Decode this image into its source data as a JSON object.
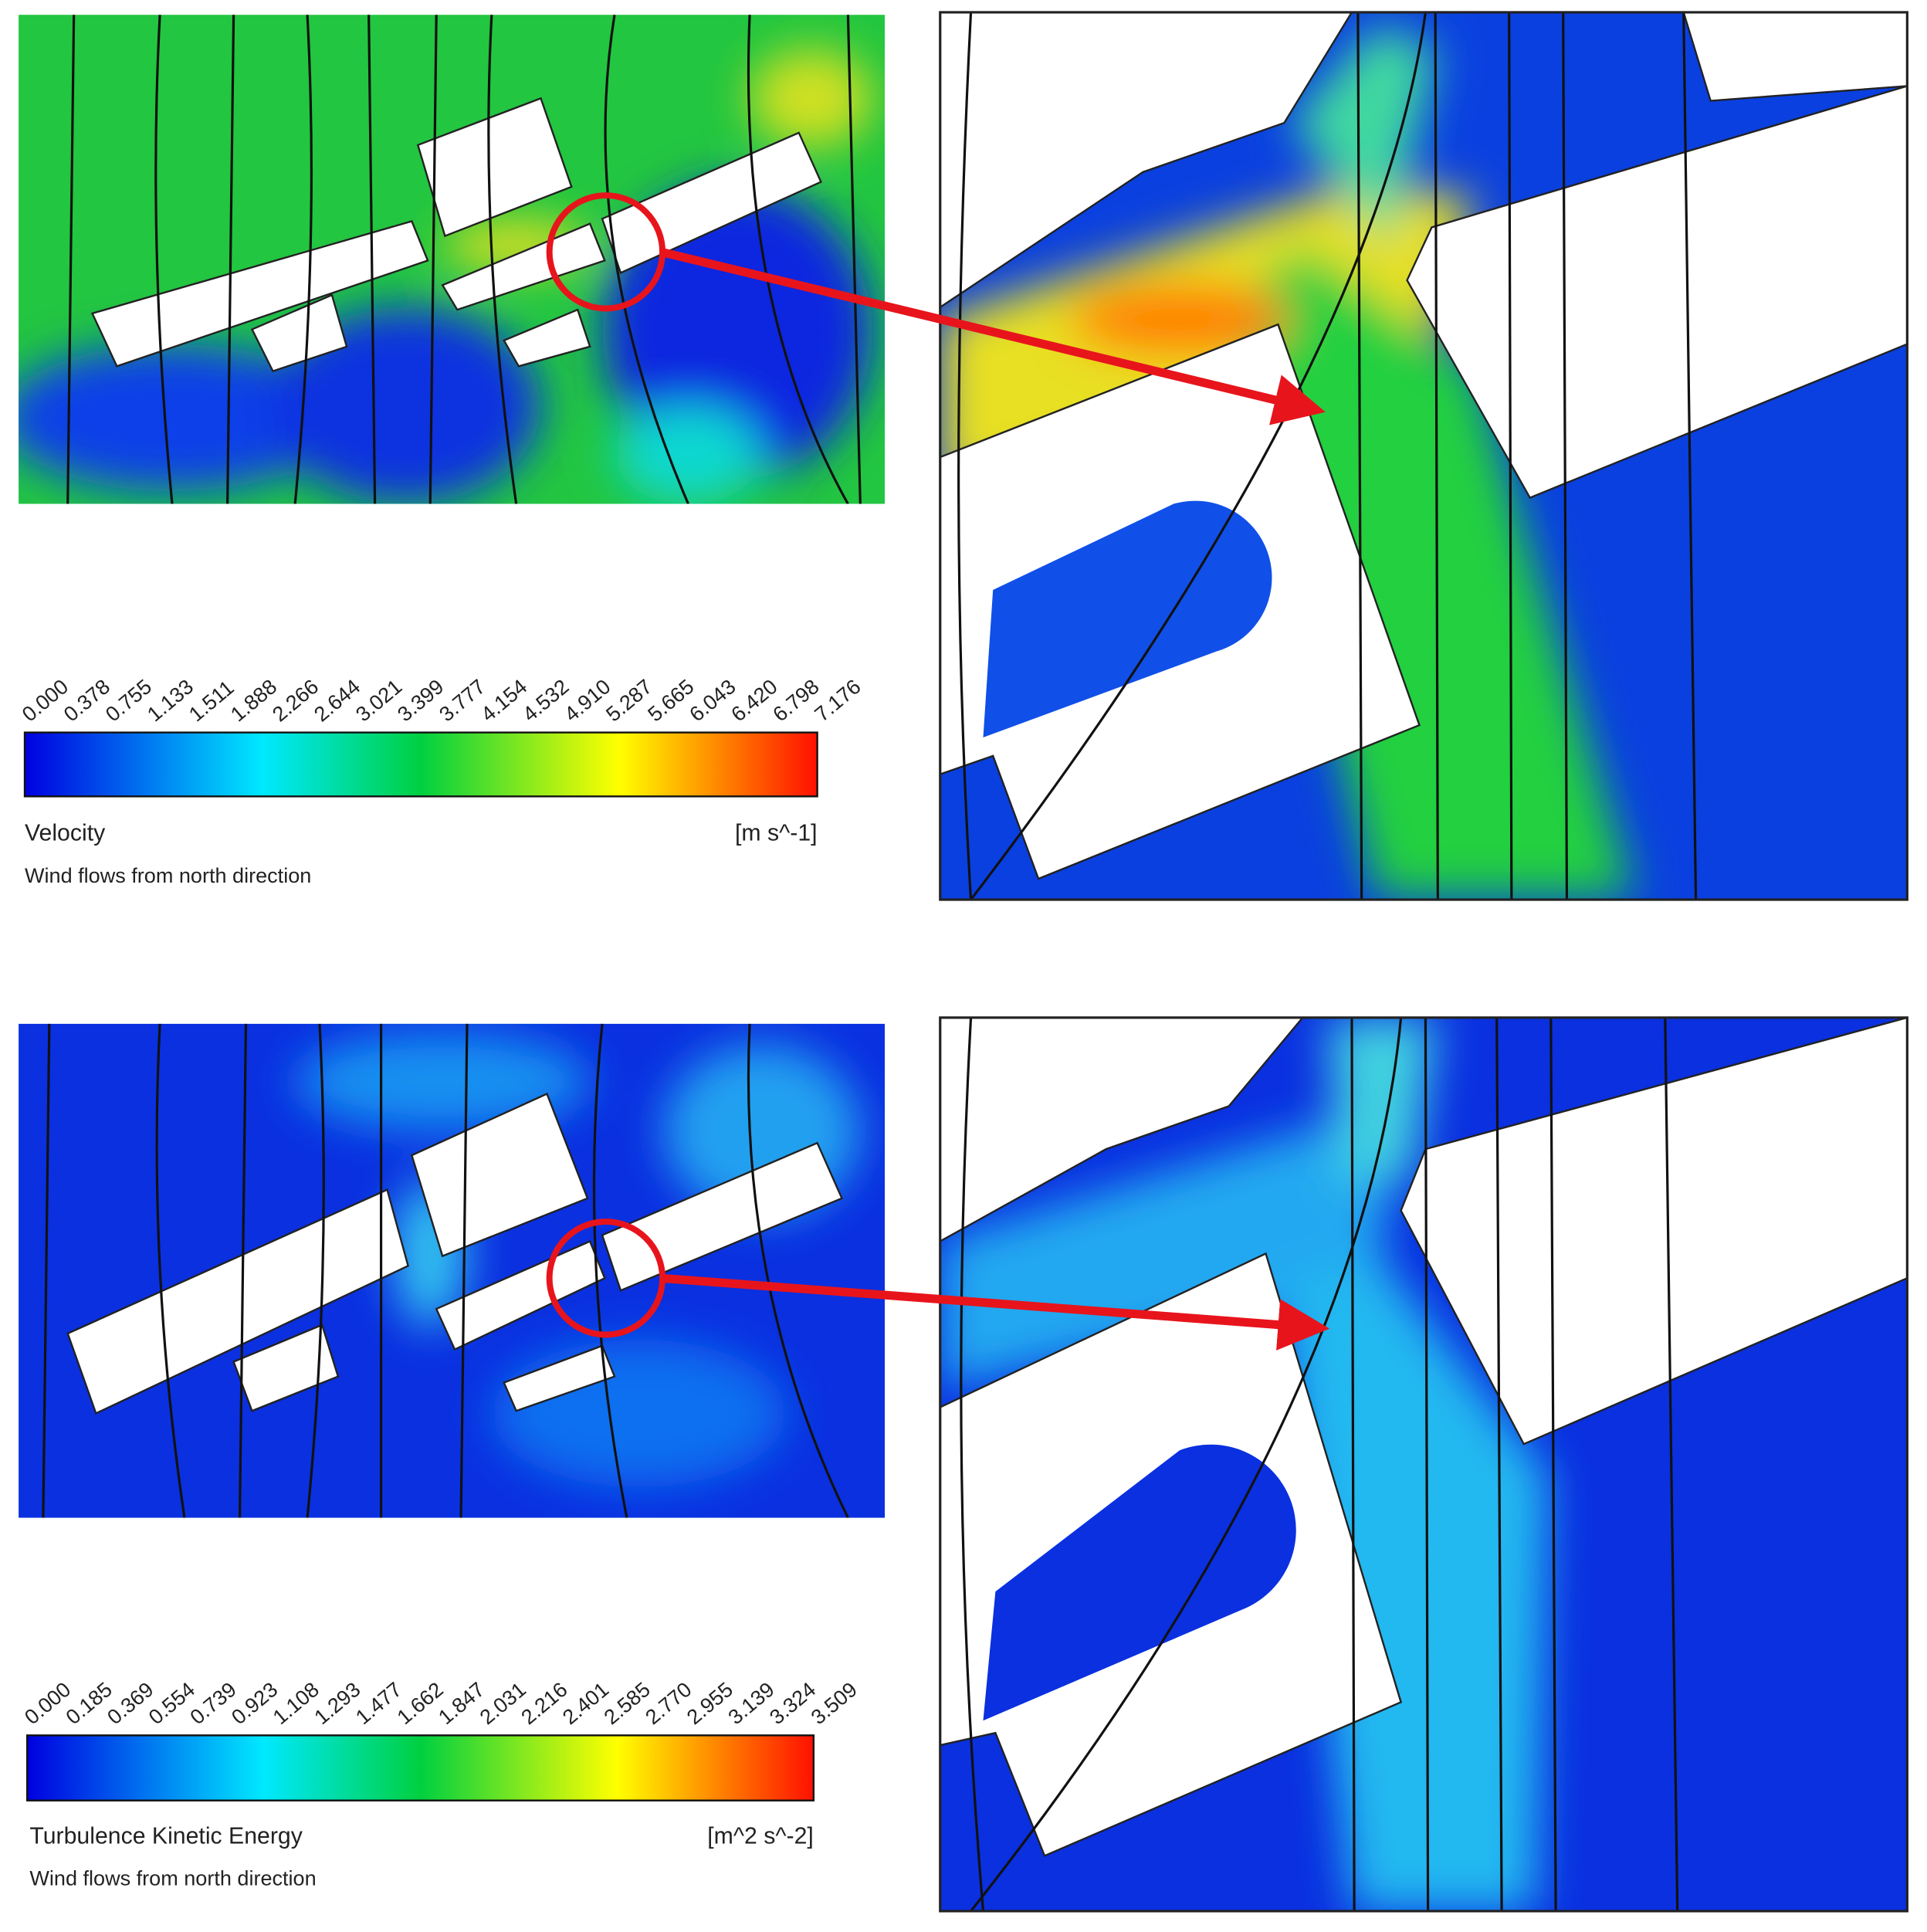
{
  "panels": [
    {
      "colorbar": {
        "ticks": [
          "0.000",
          "0.378",
          "0.755",
          "1.133",
          "1.511",
          "1.888",
          "2.266",
          "2.644",
          "3.021",
          "3.399",
          "3.777",
          "4.154",
          "4.532",
          "4.910",
          "5.287",
          "5.665",
          "6.043",
          "6.420",
          "6.798",
          "7.176"
        ],
        "quantity": "Velocity",
        "unit": "[m s^-1]"
      },
      "caption": "Wind flows from north direction"
    },
    {
      "colorbar": {
        "ticks": [
          "0.000",
          "0.185",
          "0.369",
          "0.554",
          "0.739",
          "0.923",
          "1.108",
          "1.293",
          "1.477",
          "1.662",
          "1.847",
          "2.031",
          "2.216",
          "2.401",
          "2.585",
          "2.770",
          "2.955",
          "3.139",
          "3.324",
          "3.509"
        ],
        "quantity": "Turbulence Kinetic Energy",
        "unit": "[m^2 s^-2]"
      },
      "caption": "Wind flows from north direction"
    }
  ]
}
